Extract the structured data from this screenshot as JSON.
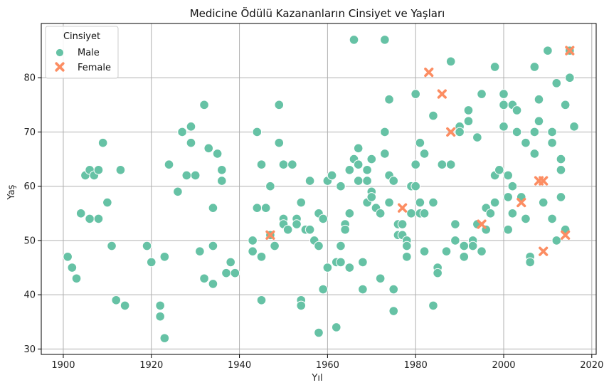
{
  "chart_data": {
    "type": "scatter",
    "title": "Medicine Ödülü Kazananların Cinsiyet ve Yaşları",
    "xlabel": "Yıl",
    "ylabel": "Yaş",
    "xlim": [
      1895,
      2021
    ],
    "ylim": [
      29,
      90
    ],
    "xticks": [
      1900,
      1920,
      1940,
      1960,
      1980,
      2000,
      2020
    ],
    "yticks": [
      30,
      40,
      50,
      60,
      70,
      80
    ],
    "grid": true,
    "legend": {
      "title": "Cinsiyet",
      "placement": "top-left"
    },
    "series": [
      {
        "name": "Male",
        "color": "#66c2a5",
        "marker": "circle",
        "points": [
          [
            1901,
            47
          ],
          [
            1902,
            45
          ],
          [
            1903,
            43
          ],
          [
            1904,
            55
          ],
          [
            1905,
            62
          ],
          [
            1906,
            63
          ],
          [
            1906,
            54
          ],
          [
            1907,
            62
          ],
          [
            1908,
            63
          ],
          [
            1908,
            54
          ],
          [
            1909,
            68
          ],
          [
            1910,
            57
          ],
          [
            1911,
            49
          ],
          [
            1912,
            39
          ],
          [
            1913,
            63
          ],
          [
            1914,
            38
          ],
          [
            1919,
            49
          ],
          [
            1920,
            46
          ],
          [
            1922,
            38
          ],
          [
            1922,
            36
          ],
          [
            1923,
            47
          ],
          [
            1923,
            32
          ],
          [
            1924,
            64
          ],
          [
            1926,
            59
          ],
          [
            1927,
            70
          ],
          [
            1928,
            62
          ],
          [
            1929,
            71
          ],
          [
            1929,
            68
          ],
          [
            1930,
            62
          ],
          [
            1931,
            48
          ],
          [
            1932,
            75
          ],
          [
            1932,
            43
          ],
          [
            1933,
            67
          ],
          [
            1934,
            56
          ],
          [
            1934,
            49
          ],
          [
            1934,
            42
          ],
          [
            1935,
            66
          ],
          [
            1936,
            63
          ],
          [
            1936,
            61
          ],
          [
            1937,
            44
          ],
          [
            1938,
            46
          ],
          [
            1939,
            44
          ],
          [
            1943,
            50
          ],
          [
            1943,
            48
          ],
          [
            1944,
            70
          ],
          [
            1944,
            56
          ],
          [
            1945,
            64
          ],
          [
            1945,
            47
          ],
          [
            1945,
            39
          ],
          [
            1946,
            56
          ],
          [
            1947,
            60
          ],
          [
            1947,
            51
          ],
          [
            1948,
            49
          ],
          [
            1949,
            75
          ],
          [
            1949,
            68
          ],
          [
            1950,
            64
          ],
          [
            1950,
            54
          ],
          [
            1950,
            53
          ],
          [
            1951,
            52
          ],
          [
            1952,
            64
          ],
          [
            1953,
            54
          ],
          [
            1953,
            53
          ],
          [
            1954,
            57
          ],
          [
            1954,
            39
          ],
          [
            1954,
            38
          ],
          [
            1955,
            52
          ],
          [
            1956,
            61
          ],
          [
            1956,
            52
          ],
          [
            1957,
            50
          ],
          [
            1958,
            55
          ],
          [
            1958,
            49
          ],
          [
            1958,
            33
          ],
          [
            1959,
            54
          ],
          [
            1959,
            41
          ],
          [
            1960,
            61
          ],
          [
            1960,
            45
          ],
          [
            1961,
            62
          ],
          [
            1962,
            46
          ],
          [
            1962,
            34
          ],
          [
            1963,
            60
          ],
          [
            1963,
            49
          ],
          [
            1963,
            46
          ],
          [
            1964,
            53
          ],
          [
            1964,
            52
          ],
          [
            1965,
            63
          ],
          [
            1965,
            55
          ],
          [
            1965,
            45
          ],
          [
            1966,
            87
          ],
          [
            1966,
            65
          ],
          [
            1967,
            67
          ],
          [
            1967,
            64
          ],
          [
            1967,
            61
          ],
          [
            1968,
            46
          ],
          [
            1968,
            41
          ],
          [
            1969,
            63
          ],
          [
            1969,
            61
          ],
          [
            1969,
            57
          ],
          [
            1970,
            65
          ],
          [
            1970,
            59
          ],
          [
            1970,
            58
          ],
          [
            1971,
            56
          ],
          [
            1972,
            55
          ],
          [
            1972,
            43
          ],
          [
            1973,
            87
          ],
          [
            1973,
            70
          ],
          [
            1973,
            66
          ],
          [
            1974,
            76
          ],
          [
            1974,
            62
          ],
          [
            1974,
            57
          ],
          [
            1975,
            61
          ],
          [
            1975,
            41
          ],
          [
            1975,
            37
          ],
          [
            1976,
            53
          ],
          [
            1976,
            51
          ],
          [
            1977,
            53
          ],
          [
            1977,
            51
          ],
          [
            1978,
            50
          ],
          [
            1978,
            49
          ],
          [
            1978,
            47
          ],
          [
            1979,
            60
          ],
          [
            1979,
            55
          ],
          [
            1980,
            77
          ],
          [
            1980,
            64
          ],
          [
            1980,
            60
          ],
          [
            1981,
            68
          ],
          [
            1981,
            57
          ],
          [
            1981,
            55
          ],
          [
            1982,
            66
          ],
          [
            1982,
            55
          ],
          [
            1982,
            48
          ],
          [
            1984,
            73
          ],
          [
            1984,
            57
          ],
          [
            1984,
            38
          ],
          [
            1985,
            45
          ],
          [
            1985,
            44
          ],
          [
            1986,
            64
          ],
          [
            1987,
            48
          ],
          [
            1988,
            83
          ],
          [
            1988,
            64
          ],
          [
            1989,
            53
          ],
          [
            1989,
            50
          ],
          [
            1990,
            71
          ],
          [
            1990,
            70
          ],
          [
            1991,
            49
          ],
          [
            1991,
            47
          ],
          [
            1992,
            74
          ],
          [
            1992,
            72
          ],
          [
            1993,
            50
          ],
          [
            1993,
            49
          ],
          [
            1994,
            69
          ],
          [
            1994,
            53
          ],
          [
            1995,
            77
          ],
          [
            1995,
            48
          ],
          [
            1996,
            56
          ],
          [
            1996,
            52
          ],
          [
            1997,
            55
          ],
          [
            1998,
            82
          ],
          [
            1998,
            62
          ],
          [
            1998,
            57
          ],
          [
            1999,
            63
          ],
          [
            2000,
            77
          ],
          [
            2000,
            75
          ],
          [
            2000,
            71
          ],
          [
            2001,
            62
          ],
          [
            2001,
            58
          ],
          [
            2001,
            52
          ],
          [
            2002,
            75
          ],
          [
            2002,
            60
          ],
          [
            2002,
            55
          ],
          [
            2003,
            74
          ],
          [
            2003,
            70
          ],
          [
            2004,
            58
          ],
          [
            2005,
            68
          ],
          [
            2005,
            54
          ],
          [
            2006,
            47
          ],
          [
            2006,
            46
          ],
          [
            2007,
            82
          ],
          [
            2007,
            70
          ],
          [
            2007,
            66
          ],
          [
            2008,
            76
          ],
          [
            2008,
            72
          ],
          [
            2009,
            57
          ],
          [
            2010,
            85
          ],
          [
            2011,
            70
          ],
          [
            2011,
            68
          ],
          [
            2011,
            54
          ],
          [
            2012,
            79
          ],
          [
            2012,
            50
          ],
          [
            2013,
            65
          ],
          [
            2013,
            63
          ],
          [
            2013,
            58
          ],
          [
            2014,
            75
          ],
          [
            2014,
            52
          ],
          [
            2015,
            85
          ],
          [
            2015,
            80
          ],
          [
            2016,
            71
          ]
        ]
      },
      {
        "name": "Female",
        "color": "#fc8d62",
        "marker": "x",
        "points": [
          [
            1947,
            51
          ],
          [
            1977,
            56
          ],
          [
            1983,
            81
          ],
          [
            1986,
            77
          ],
          [
            1988,
            70
          ],
          [
            1995,
            53
          ],
          [
            2004,
            57
          ],
          [
            2008,
            61
          ],
          [
            2009,
            61
          ],
          [
            2009,
            48
          ],
          [
            2014,
            51
          ],
          [
            2015,
            85
          ]
        ]
      }
    ]
  }
}
